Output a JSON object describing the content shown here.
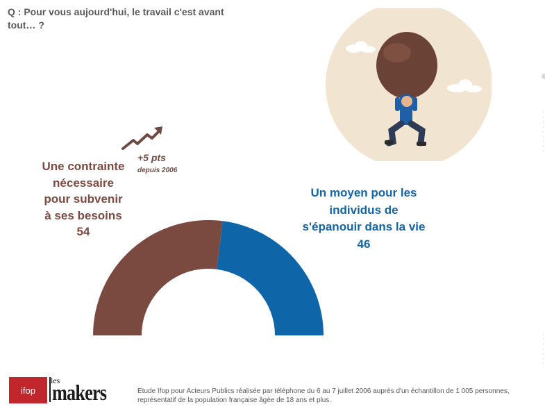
{
  "question": "Q : Pour vous aujourd'hui, le travail c'est avant tout… ?",
  "trend": {
    "value": "+5 pts",
    "since": "depuis 2006"
  },
  "footer": {
    "ifop_logo": "ifop",
    "les_makers_logo_les": "les",
    "les_makers_logo_makers": "makers",
    "footnote": "Etude Ifop pour Acteurs Publics réalisée par téléphone du 6 au 7 juillet 2006 auprès d'un échantillon de 1 005 personnes, représentatif de la population française âgée de 18 ans et plus."
  },
  "colors": {
    "left_series": "#7a4a40",
    "right_series": "#0e66a8",
    "illustration_bg": "#f1e4d1"
  },
  "illustration": "man-carrying-boulder-icon",
  "chart_data": {
    "type": "pie",
    "style": "half-donut",
    "categories": [
      "Une contrainte nécessaire pour subvenir à ses besoins",
      "Un moyen pour les individus de s'épanouir dans la vie"
    ],
    "values": [
      54,
      46
    ],
    "label_lines": [
      [
        "Une contrainte",
        "nécessaire",
        "pour subvenir",
        "à ses besoins",
        "54"
      ],
      [
        "Un moyen pour les",
        "individus de",
        "s'épanouir dans la vie",
        "46"
      ]
    ]
  }
}
